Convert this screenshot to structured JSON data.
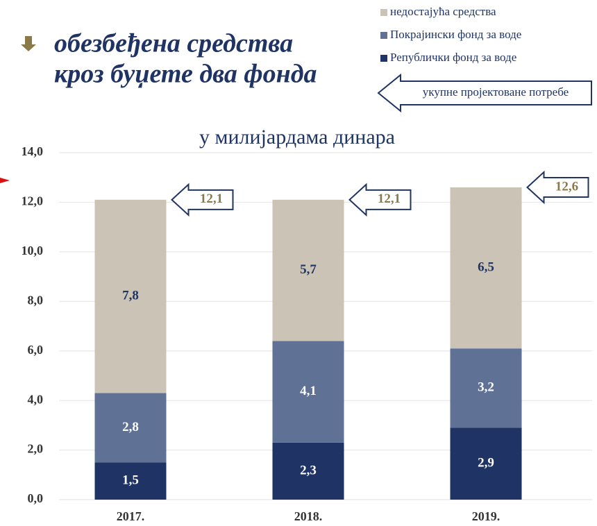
{
  "chart_data": {
    "type": "stacked_bar",
    "title_lines": [
      "обезбеђена средства",
      "кроз буџете два фонда"
    ],
    "subtitle": "у милијардама динара",
    "categories": [
      "2017.",
      "2018.",
      "2019."
    ],
    "series": [
      {
        "name": "Републички фонд за воде",
        "color": "#1f3464",
        "label_color": "#ffffff",
        "values": [
          1.5,
          2.3,
          2.9
        ],
        "value_labels": [
          "1,5",
          "2,3",
          "2,9"
        ]
      },
      {
        "name": "Покрајински фонд за воде",
        "color": "#5f7296",
        "label_color": "#ffffff",
        "values": [
          2.8,
          4.1,
          3.2
        ],
        "value_labels": [
          "2,8",
          "4,1",
          "3,2"
        ]
      },
      {
        "name": "недостајућа средства",
        "color": "#cbc3b5",
        "label_color": "#1f3464",
        "values": [
          7.8,
          5.7,
          6.5
        ],
        "value_labels": [
          "7,8",
          "5,7",
          "6,5"
        ]
      }
    ],
    "totals_name": "укупне пројектоване потребе",
    "totals": [
      12.1,
      12.1,
      12.6
    ],
    "total_labels": [
      "12,1",
      "12,1",
      "12,6"
    ],
    "ylim": [
      0,
      14
    ],
    "yticks": [
      {
        "value": 0,
        "label": "0,0"
      },
      {
        "value": 2,
        "label": "2,0"
      },
      {
        "value": 4,
        "label": "4,0"
      },
      {
        "value": 6,
        "label": "6,0"
      },
      {
        "value": 8,
        "label": "8,0"
      },
      {
        "value": 10,
        "label": "10,0"
      },
      {
        "value": 12,
        "label": "12,0"
      },
      {
        "value": 14,
        "label": "14,0"
      }
    ],
    "grid": true
  }
}
